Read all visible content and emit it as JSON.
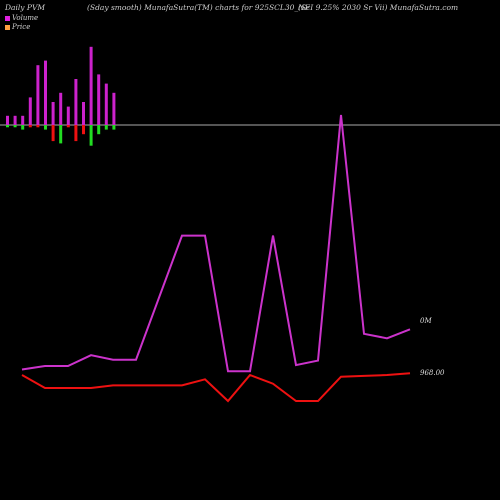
{
  "header": {
    "left": "Daily PVM",
    "middle": "(Sday smooth) MunafaSutra(TM) charts for 925SCL30_NF",
    "right": "(ScI 9.25% 2030  Sr Vii) MunafaSutra.com"
  },
  "legend": [
    {
      "label": "Volume",
      "color": "#e020e0"
    },
    {
      "label": "Price",
      "color": "#ffa040"
    }
  ],
  "chart_data": {
    "type": "line",
    "volume_panel": {
      "type": "bar",
      "up_color": "#cc22cc",
      "up_below_color": "#22dd22",
      "down_below_color": "#ee1111",
      "bars": [
        {
          "up": 2,
          "down": -0.5,
          "down_color": "green"
        },
        {
          "up": 2,
          "down": -0.5,
          "down_color": "green"
        },
        {
          "up": 2,
          "down": -1,
          "down_color": "green"
        },
        {
          "up": 6,
          "down": -0.5,
          "down_color": "red"
        },
        {
          "up": 13,
          "down": -0.5,
          "down_color": "red"
        },
        {
          "up": 14,
          "down": -1,
          "down_color": "green"
        },
        {
          "up": 5,
          "down": -3.5,
          "down_color": "red"
        },
        {
          "up": 7,
          "down": -4,
          "down_color": "green"
        },
        {
          "up": 4,
          "down": -0.5,
          "down_color": "red"
        },
        {
          "up": 10,
          "down": -3.5,
          "down_color": "red"
        },
        {
          "up": 5,
          "down": -2,
          "down_color": "red"
        },
        {
          "up": 17,
          "down": -4.5,
          "down_color": "green"
        },
        {
          "up": 11,
          "down": -2,
          "down_color": "green"
        },
        {
          "up": 9,
          "down": -1,
          "down_color": "green"
        },
        {
          "up": 7,
          "down": -1,
          "down_color": "green"
        }
      ]
    },
    "series": [
      {
        "color": "#cc33cc",
        "values": [
          1.0,
          1.8,
          1.8,
          4.2,
          3.2,
          3.2,
          31,
          31,
          0.6,
          0.6,
          31,
          2.0,
          3.0,
          58,
          9,
          8,
          10
        ]
      },
      {
        "color": "#ee1111",
        "values": [
          968.0,
          966.5,
          966.5,
          966.5,
          966.8,
          966.8,
          966.8,
          967.5,
          965.0,
          968.0,
          967.0,
          965.0,
          965.0,
          967.8,
          967.9,
          968.0,
          968.2
        ]
      }
    ],
    "labels": {
      "volume_last": "0M",
      "price_last": "968.00"
    }
  }
}
